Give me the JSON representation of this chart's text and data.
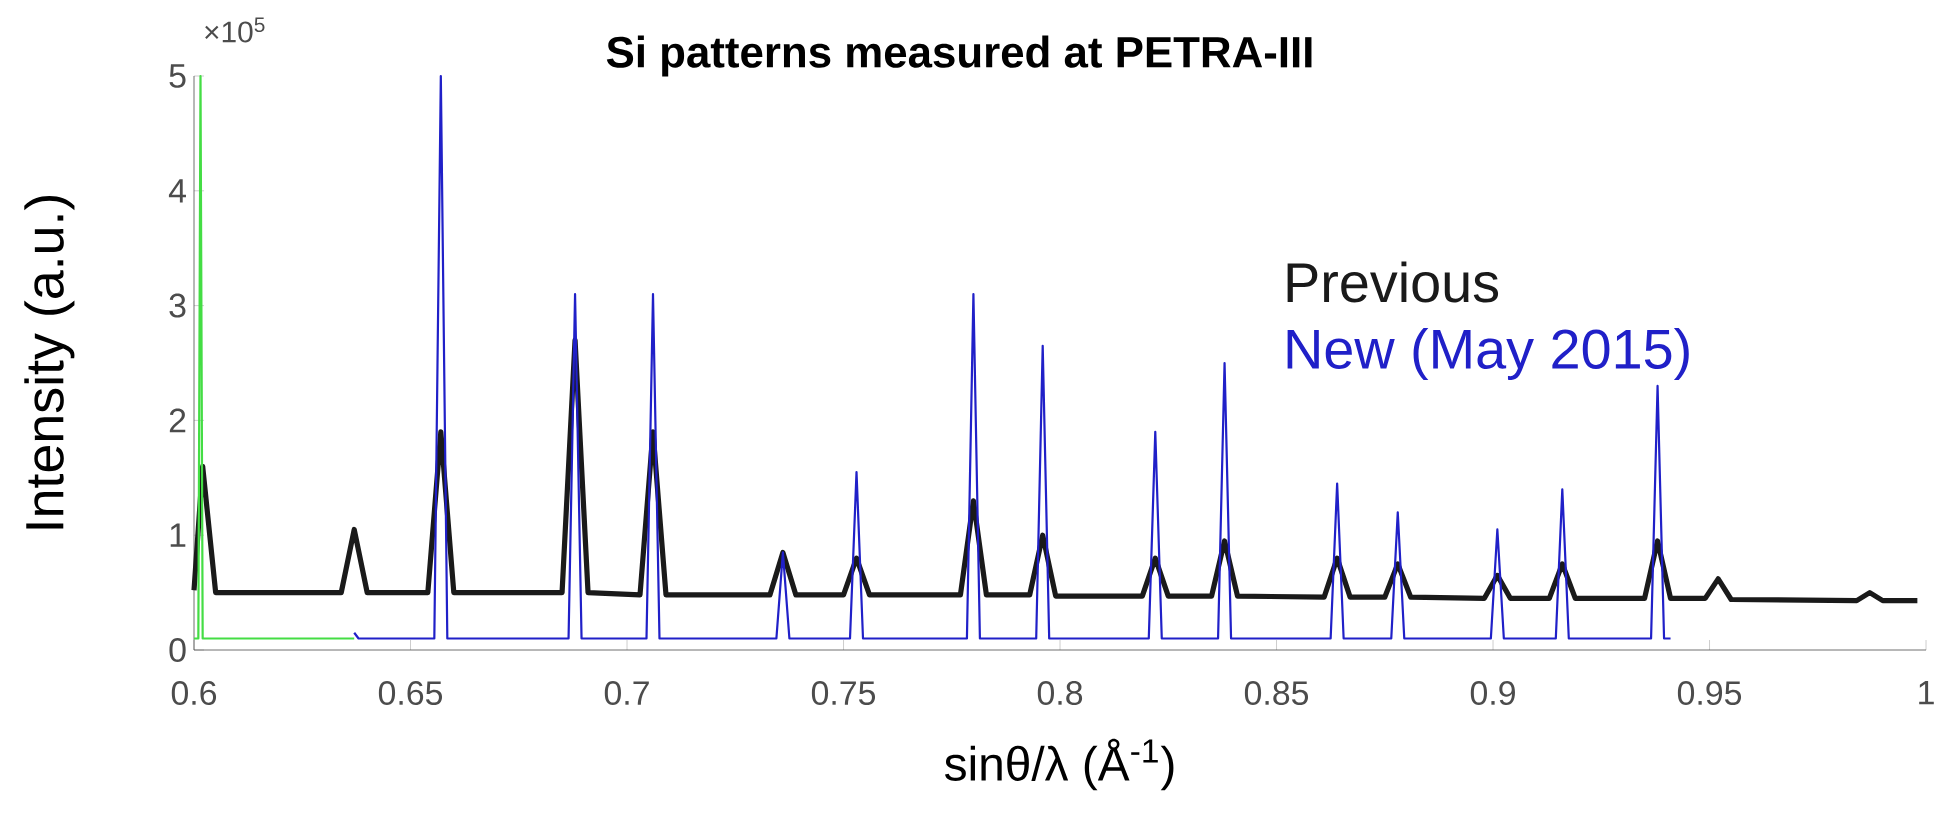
{
  "chart_data": {
    "type": "line",
    "title": "Si patterns measured at PETRA-III",
    "xlabel": "sinθ/λ (Å$^{-1}$)",
    "ylabel": "Intensity (a.u.)",
    "annotations": [
      "×10$^{5}$"
    ],
    "xlim": [
      0.6,
      1
    ],
    "ylim": [
      0,
      5
    ],
    "xticks": [
      0.6,
      0.65,
      0.7,
      0.75,
      0.8,
      0.85,
      0.9,
      0.95,
      1
    ],
    "yticks": [
      0,
      1,
      2,
      3,
      4,
      5
    ],
    "series": [
      {
        "name": "Previous",
        "color": "#1a1a1a",
        "x": [
          0.6,
          0.602,
          0.605,
          0.634,
          0.637,
          0.64,
          0.654,
          0.657,
          0.66,
          0.685,
          0.688,
          0.691,
          0.703,
          0.706,
          0.709,
          0.733,
          0.736,
          0.739,
          0.75,
          0.753,
          0.756,
          0.777,
          0.78,
          0.783,
          0.793,
          0.796,
          0.799,
          0.819,
          0.822,
          0.825,
          0.835,
          0.838,
          0.841,
          0.861,
          0.864,
          0.867,
          0.875,
          0.878,
          0.881,
          0.898,
          0.901,
          0.904,
          0.913,
          0.916,
          0.919,
          0.935,
          0.938,
          0.941,
          0.949,
          0.952,
          0.955,
          0.984,
          0.987,
          0.99,
          0.998
        ],
        "values": [
          0.52,
          1.6,
          0.5,
          0.5,
          1.05,
          0.5,
          0.5,
          1.9,
          0.5,
          0.5,
          2.7,
          0.5,
          0.48,
          1.9,
          0.48,
          0.48,
          0.85,
          0.48,
          0.48,
          0.8,
          0.48,
          0.48,
          1.3,
          0.48,
          0.48,
          1.0,
          0.47,
          0.47,
          0.8,
          0.47,
          0.47,
          0.95,
          0.47,
          0.46,
          0.8,
          0.46,
          0.46,
          0.75,
          0.46,
          0.45,
          0.65,
          0.45,
          0.45,
          0.75,
          0.45,
          0.45,
          0.95,
          0.45,
          0.45,
          0.62,
          0.44,
          0.43,
          0.5,
          0.43,
          0.43
        ]
      },
      {
        "name": "New (May 2015)",
        "color": "#2020c8",
        "x": [
          0.637,
          0.638,
          0.6555,
          0.657,
          0.6585,
          0.6865,
          0.688,
          0.6895,
          0.7045,
          0.706,
          0.7075,
          0.7345,
          0.736,
          0.7375,
          0.7515,
          0.753,
          0.7545,
          0.7785,
          0.78,
          0.7815,
          0.7945,
          0.796,
          0.7975,
          0.8205,
          0.822,
          0.8235,
          0.8365,
          0.838,
          0.8395,
          0.8625,
          0.864,
          0.8655,
          0.8765,
          0.878,
          0.8795,
          0.8995,
          0.901,
          0.9025,
          0.9145,
          0.916,
          0.9175,
          0.9365,
          0.938,
          0.9395,
          0.941
        ],
        "values": [
          0.15,
          0.1,
          0.1,
          5.0,
          0.1,
          0.1,
          3.1,
          0.1,
          0.1,
          3.1,
          0.1,
          0.1,
          0.85,
          0.1,
          0.1,
          1.55,
          0.1,
          0.1,
          3.1,
          0.1,
          0.1,
          2.65,
          0.1,
          0.1,
          1.9,
          0.1,
          0.1,
          2.5,
          0.1,
          0.1,
          1.45,
          0.1,
          0.1,
          1.2,
          0.1,
          0.1,
          1.05,
          0.1,
          0.1,
          1.4,
          0.1,
          0.1,
          2.3,
          0.1,
          0.1
        ]
      },
      {
        "color": "#44dd44",
        "x": [
          0.6,
          0.601,
          0.6015,
          0.602,
          0.637
        ],
        "values": [
          0.1,
          0.1,
          5.0,
          0.1,
          0.1
        ]
      }
    ]
  }
}
